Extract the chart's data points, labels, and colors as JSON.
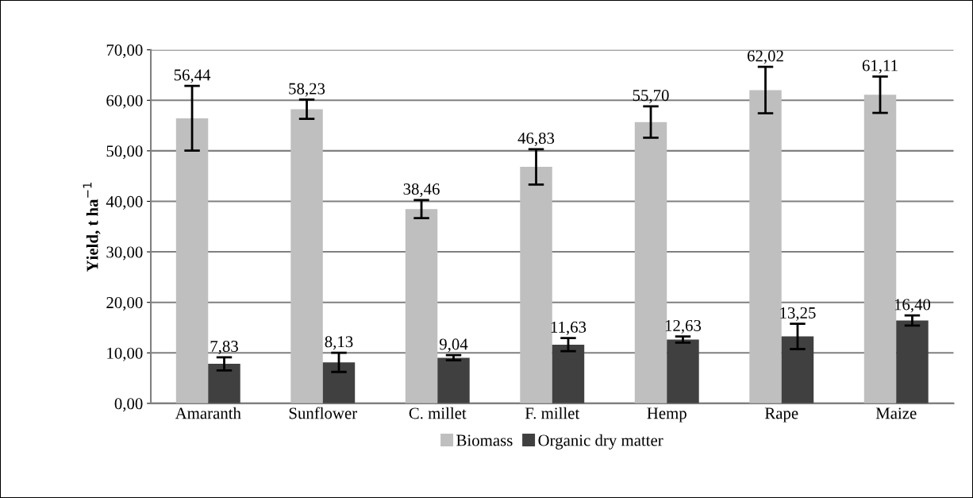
{
  "chart_data": {
    "type": "bar",
    "ylabel": "Yield, t ha$^{−1}$",
    "categories": [
      "Amaranth",
      "Sunflower",
      "C. millet",
      "F. millet",
      "Hemp",
      "Rape",
      "Maize"
    ],
    "series": [
      {
        "name": "Biomass",
        "color": "#bfbfbf",
        "values": [
          56.44,
          58.23,
          38.46,
          46.83,
          55.7,
          62.02,
          61.11
        ],
        "errors": [
          6.4,
          1.9,
          1.8,
          3.5,
          3.1,
          4.6,
          3.6
        ],
        "value_labels": [
          "56,44",
          "58,23",
          "38,46",
          "46,83",
          "55,70",
          "62,02",
          "61,11"
        ]
      },
      {
        "name": "Organic dry matter",
        "color": "#404040",
        "values": [
          7.83,
          8.13,
          9.04,
          11.63,
          12.63,
          13.25,
          16.4
        ],
        "errors": [
          1.3,
          1.9,
          0.5,
          1.3,
          0.6,
          2.5,
          1.0
        ],
        "value_labels": [
          "7,83",
          "8,13",
          "9,04",
          "11,63",
          "12,63",
          "13,25",
          "16,40"
        ]
      }
    ],
    "ylim": [
      0,
      70
    ],
    "yticks": [
      {
        "value": 0,
        "label": "0,00"
      },
      {
        "value": 10,
        "label": "10,00"
      },
      {
        "value": 20,
        "label": "20,00"
      },
      {
        "value": 30,
        "label": "30,00"
      },
      {
        "value": 40,
        "label": "40,00"
      },
      {
        "value": 50,
        "label": "50,00"
      },
      {
        "value": 60,
        "label": "60,00"
      },
      {
        "value": 70,
        "label": "70,00"
      }
    ],
    "grid": "y",
    "legend": "bottom"
  }
}
